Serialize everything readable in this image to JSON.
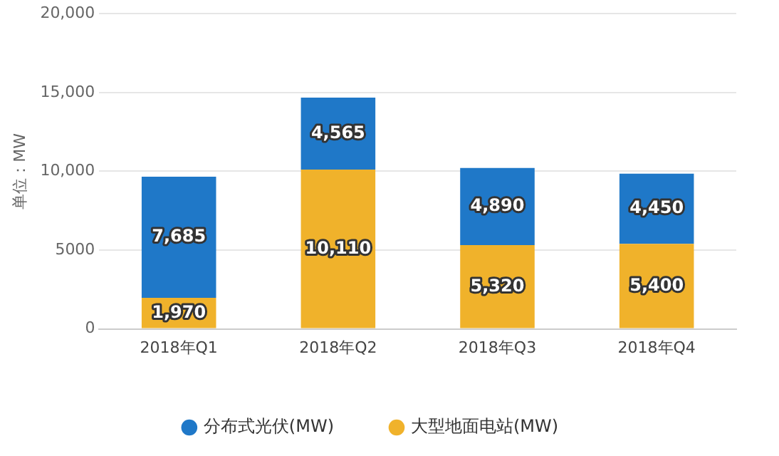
{
  "chart_data": {
    "type": "bar",
    "stacked": true,
    "ylabel": "单位：MW",
    "categories": [
      "2018年Q1",
      "2018年Q2",
      "2018年Q3",
      "2018年Q4"
    ],
    "series": [
      {
        "name": "大型地面电站(MW)",
        "color": "#f0b22b",
        "values": [
          1970,
          10110,
          5320,
          5400
        ],
        "value_labels": [
          "1,970",
          "10,110",
          "5,320",
          "5,400"
        ]
      },
      {
        "name": "分布式光伏(MW)",
        "color": "#1f78c8",
        "values": [
          7685,
          4565,
          4890,
          4450
        ],
        "value_labels": [
          "7,685",
          "4,565",
          "4,890",
          "4,450"
        ]
      }
    ],
    "ylim": [
      0,
      20000
    ],
    "yticks": [
      0,
      {
        "value": 5000,
        "label": "5000"
      },
      {
        "value": 10000,
        "label": "10,000"
      },
      {
        "value": 15000,
        "label": "15,000"
      },
      {
        "value": 20000,
        "label": "20,000"
      }
    ],
    "grid": "y",
    "legend": "bottom"
  }
}
